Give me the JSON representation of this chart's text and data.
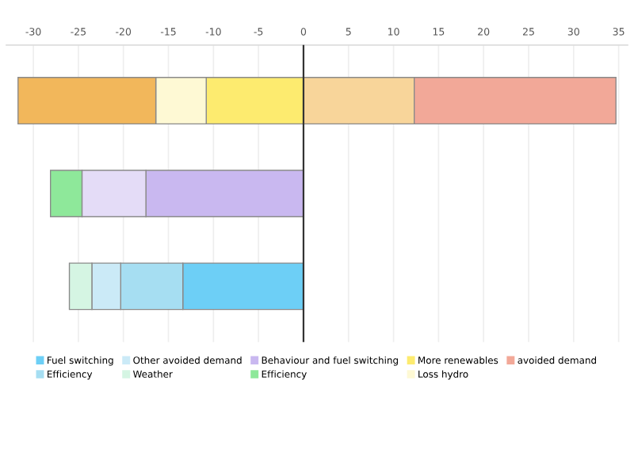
{
  "chart_data": {
    "type": "bar",
    "orientation": "horizontal",
    "stacked": true,
    "categories": [
      null,
      null,
      null
    ],
    "xlim": [
      -33,
      36
    ],
    "xticks": [
      -30,
      -25,
      -20,
      -15,
      -10,
      -5,
      0,
      5,
      10,
      15,
      20,
      25,
      30,
      35
    ],
    "grid": "x",
    "legend": "bottom",
    "tick_labels": "x",
    "ref_lines": [
      {
        "axis": "x",
        "value": 0,
        "color": "#333333"
      }
    ],
    "series": [
      {
        "name": "Fuel switching",
        "color": "#6dcff6",
        "values": [
          null,
          null,
          -13.4
        ]
      },
      {
        "name": "Efficiency",
        "color": "#a6def2",
        "values": [
          null,
          null,
          -6.9
        ]
      },
      {
        "name": "Other avoided demand",
        "color": "#cbeaf7",
        "values": [
          null,
          null,
          -3.2
        ]
      },
      {
        "name": "Weather",
        "color": "#d5f5e3",
        "values": [
          null,
          null,
          -2.5
        ]
      },
      {
        "name": "Behaviour and fuel switching",
        "color": "#c9b8f0",
        "values": [
          null,
          -17.5,
          null
        ]
      },
      {
        "color": "#e4dcf7",
        "values": [
          null,
          -7.1,
          null
        ]
      },
      {
        "name": "Efficiency",
        "color": "#8ee89a",
        "values": [
          null,
          -3.5,
          null
        ]
      },
      {
        "name": "More renewables",
        "color": "#fdeb6f",
        "values": [
          -10.8,
          null,
          null
        ]
      },
      {
        "name": "Loss hydro",
        "color": "#fef9d4",
        "values": [
          -5.6,
          null,
          null
        ]
      },
      {
        "color": "#f2b75b",
        "values": [
          -15.3,
          null,
          null
        ]
      },
      {
        "color": "#f8d59a",
        "values": [
          12.3,
          null,
          null
        ]
      },
      {
        "name": "avoided demand",
        "color": "#f2a898",
        "values": [
          22.4,
          null,
          null
        ]
      }
    ]
  }
}
